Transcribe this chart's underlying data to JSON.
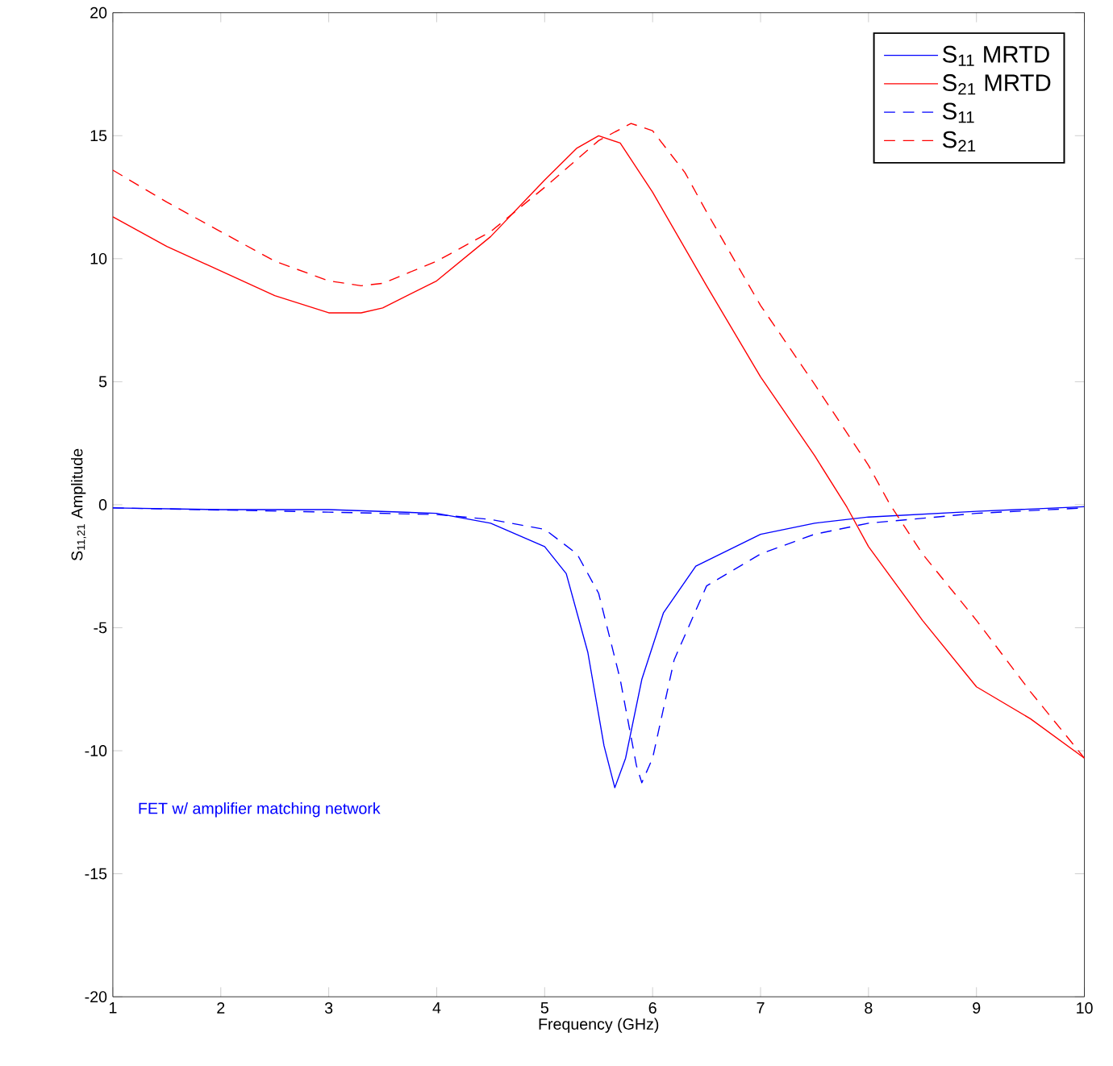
{
  "chart_data": {
    "type": "line",
    "xlabel": "Frequency (GHz)",
    "ylabel": "S$_{11,21}$ Amplitude",
    "xlim": [
      1,
      10
    ],
    "ylim": [
      -20,
      20
    ],
    "xticks": [
      1,
      2,
      3,
      4,
      5,
      6,
      7,
      8,
      9,
      10
    ],
    "yticks": [
      -20,
      -15,
      -10,
      -5,
      0,
      5,
      10,
      15,
      20
    ],
    "grid": false,
    "legend": "top right",
    "marker": "none",
    "annotations": [
      "FET w/ amplifier matching network"
    ],
    "series": [
      {
        "name": "S$_{11}$ MRTD",
        "color": "#0000ff",
        "line_style": "solid",
        "x": [
          1,
          2,
          3,
          4,
          4.5,
          5,
          5.2,
          5.4,
          5.55,
          5.65,
          5.75,
          5.9,
          6.1,
          6.4,
          7,
          7.5,
          8,
          9,
          10
        ],
        "values": [
          -0.13,
          -0.2,
          -0.2,
          -0.35,
          -0.75,
          -1.7,
          -2.8,
          -6.0,
          -9.8,
          -11.5,
          -10.3,
          -7.1,
          -4.4,
          -2.5,
          -1.2,
          -0.75,
          -0.5,
          -0.27,
          -0.08
        ]
      },
      {
        "name": "S$_{21}$ MRTD",
        "color": "#ff0000",
        "line_style": "solid",
        "x": [
          1,
          1.5,
          2,
          2.5,
          3,
          3.3,
          3.5,
          4,
          4.5,
          5,
          5.3,
          5.5,
          5.7,
          6,
          6.5,
          7,
          7.5,
          7.8,
          8,
          8.5,
          9,
          9.5,
          10
        ],
        "values": [
          11.7,
          10.5,
          9.5,
          8.5,
          7.8,
          7.8,
          8.0,
          9.1,
          10.9,
          13.2,
          14.5,
          15.0,
          14.7,
          12.7,
          8.9,
          5.2,
          2.0,
          -0.1,
          -1.7,
          -4.7,
          -7.4,
          -8.7,
          -10.3
        ]
      },
      {
        "name": "S$_{11}$",
        "color": "#0000ff",
        "line_style": "dashed",
        "x": [
          1,
          3,
          4,
          4.5,
          5,
          5.3,
          5.5,
          5.7,
          5.85,
          5.9,
          6.0,
          6.2,
          6.5,
          7,
          7.5,
          8,
          9,
          10
        ],
        "values": [
          -0.13,
          -0.3,
          -0.4,
          -0.6,
          -1.0,
          -2.0,
          -3.6,
          -7.1,
          -10.6,
          -11.3,
          -10.3,
          -6.3,
          -3.3,
          -2.0,
          -1.2,
          -0.75,
          -0.35,
          -0.13
        ]
      },
      {
        "name": "S$_{21}$",
        "color": "#ff0000",
        "line_style": "dashed",
        "x": [
          1,
          1.5,
          2,
          2.5,
          3,
          3.3,
          3.5,
          4,
          4.5,
          5,
          5.5,
          5.8,
          6,
          6.3,
          6.5,
          7,
          7.5,
          8,
          8.2,
          8.5,
          9,
          9.5,
          10
        ],
        "values": [
          13.6,
          12.3,
          11.1,
          9.9,
          9.1,
          8.9,
          9.0,
          9.9,
          11.1,
          12.9,
          14.8,
          15.5,
          15.2,
          13.5,
          11.9,
          8.1,
          4.9,
          1.6,
          0,
          -2.0,
          -4.7,
          -7.6,
          -10.3
        ]
      }
    ]
  }
}
